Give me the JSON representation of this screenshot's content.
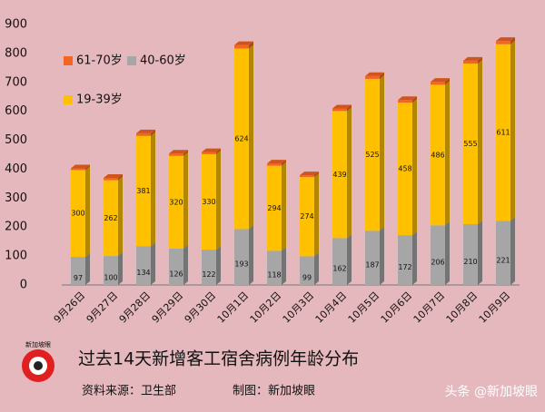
{
  "chart_data": {
    "type": "bar",
    "stacked": true,
    "title": "过去14天新增客工宿舍病例年龄分布",
    "source": "资料来源：卫生部",
    "credit": "制图：新加坡眼",
    "categories": [
      "9月26日",
      "9月27日",
      "9月28日",
      "9月29日",
      "9月30日",
      "10月1日",
      "10月2日",
      "10月3日",
      "10月4日",
      "10月5日",
      "10月6日",
      "10月7日",
      "10月8日",
      "10月9日"
    ],
    "series": [
      {
        "name": "40-60岁",
        "color": "#a6a6a6",
        "values": [
          97,
          100,
          134,
          126,
          122,
          193,
          118,
          99,
          162,
          187,
          172,
          206,
          210,
          221
        ]
      },
      {
        "name": "19-39岁",
        "color": "#ffc000",
        "values": [
          300,
          262,
          381,
          320,
          330,
          624,
          294,
          274,
          439,
          525,
          458,
          486,
          555,
          611
        ]
      },
      {
        "name": "61-70岁",
        "color": "#f26522",
        "values": [
          6,
          8,
          9,
          8,
          7,
          12,
          8,
          6,
          9,
          10,
          9,
          10,
          10,
          11
        ]
      }
    ],
    "ylim": [
      0,
      900
    ],
    "yticks": [
      0,
      100,
      200,
      300,
      400,
      500,
      600,
      700,
      800,
      900
    ],
    "grid": false
  },
  "branding": {
    "logo": "新加坡眼",
    "watermark": "头条 @新加坡眼"
  }
}
